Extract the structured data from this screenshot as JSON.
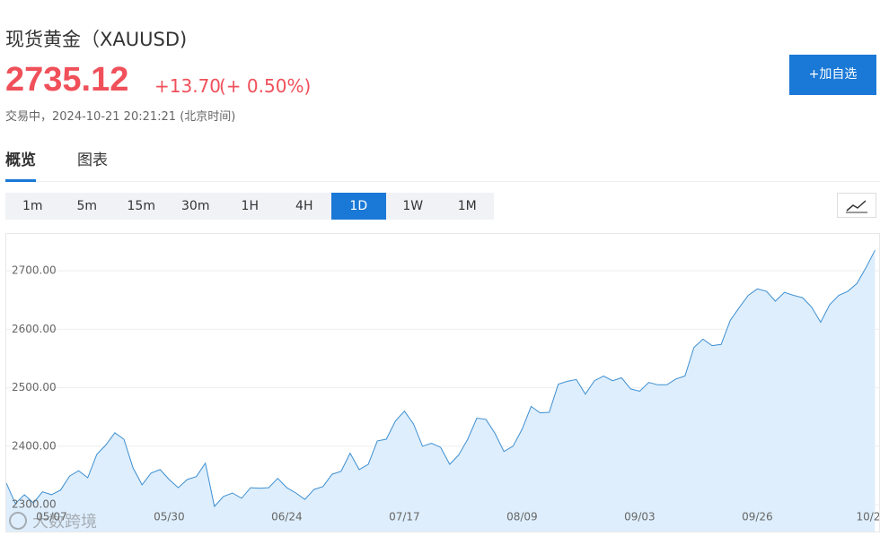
{
  "header": {
    "title": "现货黄金（XAUUSD)",
    "price": "2735.12",
    "change": "+13.70",
    "change_pct": "(+ 0.50%)",
    "status": "交易中，2024-10-21 20:21:21 (北京时间)",
    "button": "+加自选"
  },
  "tabs": [
    "概览",
    "图表"
  ],
  "periods": [
    "1m",
    "5m",
    "15m",
    "30m",
    "1H",
    "4H",
    "1D",
    "1W",
    "1M"
  ],
  "active_period": "1D",
  "watermark": "大数跨境",
  "chart_data": {
    "type": "area",
    "color": "#3d8fd1",
    "fill": "#deeefc",
    "grid": true,
    "categories": [
      null,
      null,
      null,
      null,
      null,
      "05/07",
      null,
      null,
      null,
      null,
      null,
      null,
      null,
      null,
      null,
      null,
      null,
      null,
      "05/30",
      null,
      null,
      null,
      null,
      null,
      null,
      null,
      null,
      null,
      null,
      null,
      null,
      "06/24",
      null,
      null,
      null,
      null,
      null,
      null,
      null,
      null,
      null,
      null,
      null,
      null,
      "07/17",
      null,
      null,
      null,
      null,
      null,
      null,
      null,
      null,
      null,
      null,
      null,
      null,
      "08/09",
      null,
      null,
      null,
      null,
      null,
      null,
      null,
      null,
      null,
      null,
      null,
      null,
      "09/03",
      null,
      null,
      null,
      null,
      null,
      null,
      null,
      null,
      null,
      null,
      null,
      null,
      "09/26",
      null,
      null,
      null,
      null,
      null,
      null,
      null,
      null,
      null,
      null,
      null,
      null,
      "10/2"
    ],
    "values": [
      2337,
      2302,
      2317,
      2303,
      2322,
      2317,
      2325,
      2349,
      2358,
      2346,
      2386,
      2402,
      2423,
      2412,
      2363,
      2334,
      2354,
      2360,
      2343,
      2329,
      2343,
      2348,
      2371,
      2297,
      2314,
      2320,
      2311,
      2329,
      2328,
      2329,
      2345,
      2329,
      2320,
      2309,
      2326,
      2331,
      2352,
      2357,
      2388,
      2360,
      2369,
      2409,
      2412,
      2443,
      2460,
      2438,
      2400,
      2405,
      2398,
      2369,
      2385,
      2412,
      2448,
      2446,
      2422,
      2391,
      2400,
      2429,
      2468,
      2457,
      2458,
      2506,
      2511,
      2514,
      2489,
      2512,
      2520,
      2512,
      2517,
      2498,
      2494,
      2509,
      2505,
      2505,
      2515,
      2520,
      2569,
      2583,
      2572,
      2574,
      2615,
      2637,
      2658,
      2669,
      2665,
      2648,
      2663,
      2658,
      2654,
      2638,
      2612,
      2642,
      2658,
      2665,
      2678,
      2705,
      2735.12
    ],
    "ylim": [
      2251,
      2763
    ],
    "yticks": [
      {
        "value": 2300,
        "label": "2300.00"
      },
      {
        "value": 2400,
        "label": "2400.00"
      },
      {
        "value": 2500,
        "label": "2500.00"
      },
      {
        "value": 2600,
        "label": "2600.00"
      },
      {
        "value": 2700,
        "label": "2700.00"
      }
    ]
  }
}
